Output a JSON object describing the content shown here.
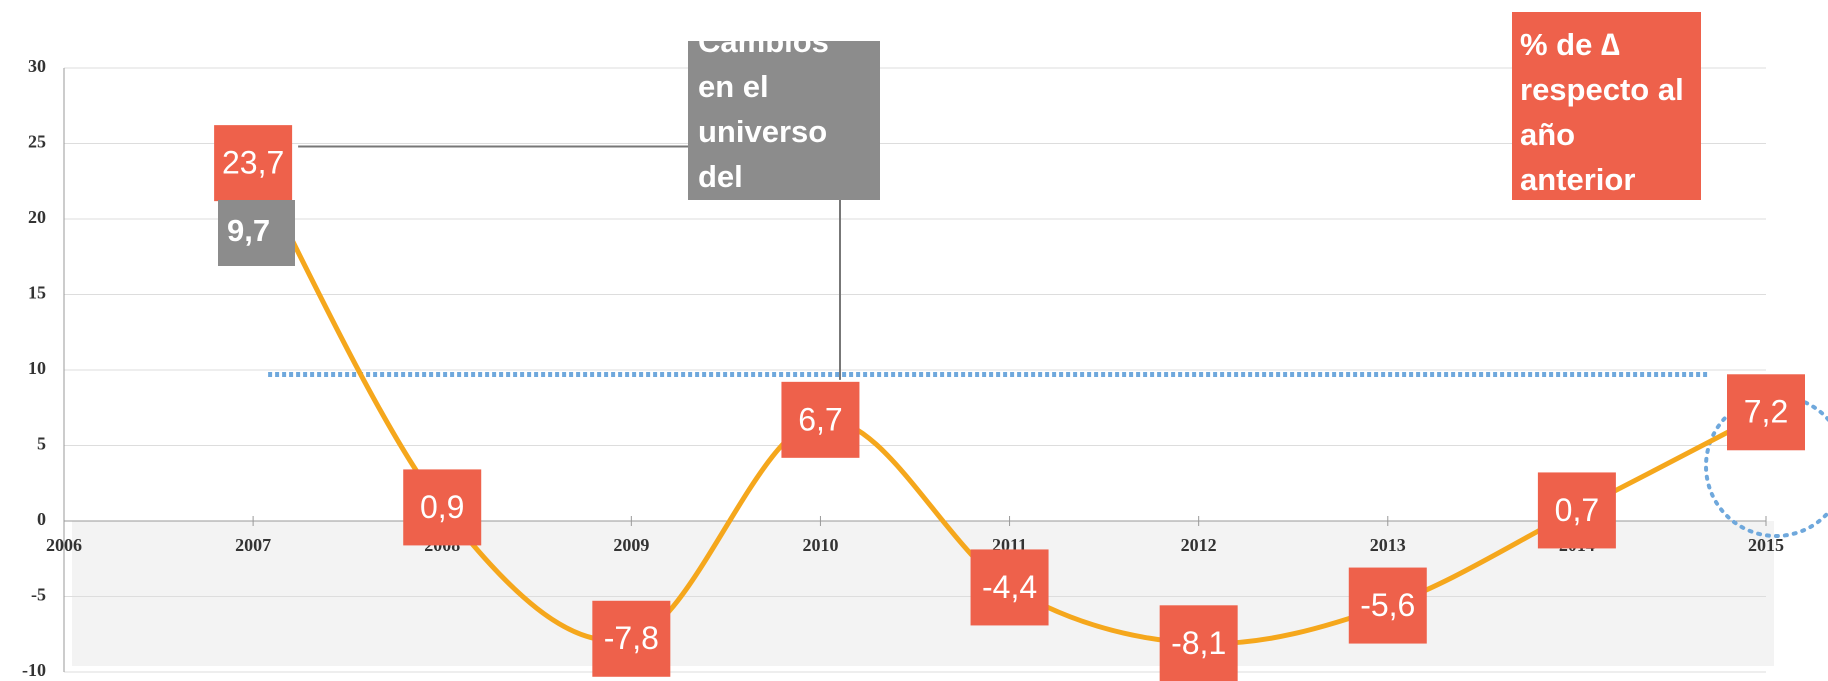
{
  "chart_data": {
    "type": "line",
    "x": [
      2007,
      2008,
      2009,
      2010,
      2011,
      2012,
      2013,
      2014,
      2015
    ],
    "series": [
      {
        "color": "#f5a71c",
        "values": [
          23.7,
          0.9,
          -7.8,
          6.7,
          -4.4,
          -8.1,
          -5.6,
          0.7,
          7.2
        ],
        "value_labels": [
          "23,7",
          "0,9",
          "-7,8",
          "6,7",
          "-4,4",
          "-8,1",
          "-5,6",
          "0,7",
          "7,2"
        ],
        "label_color": "#ee614b"
      }
    ],
    "xlim": [
      2006,
      2015
    ],
    "xticks": [
      2006,
      2007,
      2008,
      2009,
      2010,
      2011,
      2012,
      2013,
      2014,
      2015
    ],
    "ylim": [
      -10,
      30
    ],
    "yticks": [
      -10,
      -5,
      0,
      5,
      10,
      15,
      20,
      25,
      30
    ],
    "grid": true,
    "reference": {
      "value": 9.7,
      "label": "9,7",
      "color": "#6fa8dc"
    },
    "annotation": "Cambios en el universo del",
    "legend_note": "% de ∆ respecto al año anterior"
  }
}
